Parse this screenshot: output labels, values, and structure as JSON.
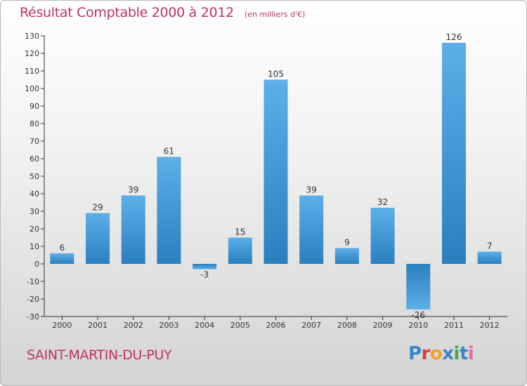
{
  "title": "Résultat Comptable 2000 à 2012",
  "subtitle": "(en milliers d'€)",
  "commune": "SAINT-MARTIN-DU-PUY",
  "brand": {
    "letters": [
      {
        "ch": "P",
        "color": "#3a86c8"
      },
      {
        "ch": "r",
        "color": "#d93b3b"
      },
      {
        "ch": "o",
        "color": "#f0a12c"
      },
      {
        "ch": "x",
        "color": "#3a86c8"
      },
      {
        "ch": "i",
        "color": "#4aa84a"
      },
      {
        "ch": "t",
        "color": "#3a86c8"
      },
      {
        "ch": "i",
        "color": "#e86aa0"
      }
    ]
  },
  "colors": {
    "title": "#c0325f",
    "bar_light": "#5dafe8",
    "bar_dark": "#2a7fbf",
    "axis": "#333333"
  },
  "chart_data": {
    "type": "bar",
    "categories": [
      "2000",
      "2001",
      "2002",
      "2003",
      "2004",
      "2005",
      "2006",
      "2007",
      "2008",
      "2009",
      "2010",
      "2011",
      "2012"
    ],
    "values": [
      6,
      29,
      39,
      61,
      -3,
      15,
      105,
      39,
      9,
      32,
      -26,
      126,
      7
    ],
    "ylim": [
      -30,
      130
    ],
    "yticks": [
      -30,
      -20,
      -10,
      0,
      10,
      20,
      30,
      40,
      50,
      60,
      70,
      80,
      90,
      100,
      110,
      120,
      130
    ],
    "grid": false,
    "legend": "none"
  }
}
